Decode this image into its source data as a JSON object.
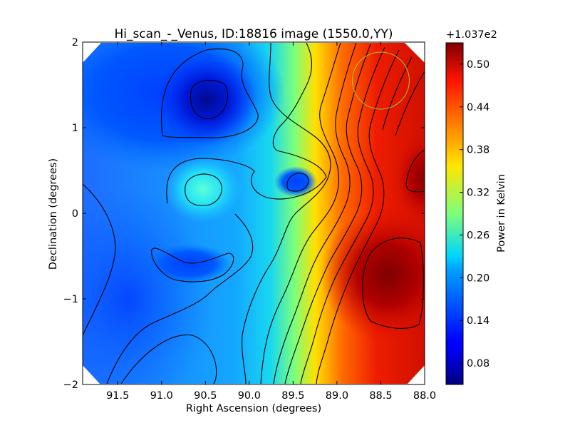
{
  "chart_data": {
    "type": "heatmap",
    "title": "Hi_scan_-_Venus, ID:18816 image (1550.0,YY)",
    "xlabel": "Right Ascension (degrees)",
    "ylabel": "Declination (degrees)",
    "xlim": [
      91.9,
      88.0
    ],
    "ylim": [
      -2,
      2
    ],
    "x_inverted": true,
    "x_ticks": [
      "91.5",
      "91.0",
      "90.5",
      "90.0",
      "89.5",
      "89.0",
      "88.5",
      "88.0"
    ],
    "x_tick_values": [
      91.5,
      91.0,
      90.5,
      90.0,
      89.5,
      89.0,
      88.5,
      88.0
    ],
    "y_ticks": [
      "2",
      "1",
      "0",
      "−1",
      "−2"
    ],
    "y_tick_values": [
      2,
      1,
      0,
      -1,
      -2
    ],
    "colormap": "jet",
    "colorbar": {
      "label": "Power in Kelvin",
      "offset_label": "+1.037e2",
      "offset": 103.7,
      "range": [
        0.05,
        0.53
      ],
      "ticks": [
        "0.50",
        "0.44",
        "0.38",
        "0.32",
        "0.26",
        "0.20",
        "0.14",
        "0.08"
      ],
      "tick_values": [
        0.5,
        0.44,
        0.38,
        0.32,
        0.26,
        0.2,
        0.14,
        0.08
      ]
    },
    "grid": false,
    "contours": true,
    "features": [
      {
        "ra": 90.55,
        "dec": 1.3,
        "value": 0.05,
        "kind": "minimum"
      },
      {
        "ra": 90.6,
        "dec": 0.28,
        "value": 0.26,
        "kind": "local maximum"
      },
      {
        "ra": 89.55,
        "dec": 0.35,
        "value": 0.11,
        "kind": "local minimum"
      },
      {
        "ra": 90.6,
        "dec": -0.6,
        "value": 0.11,
        "kind": "local minimum"
      },
      {
        "ra": 88.5,
        "dec": -0.65,
        "value": 0.53,
        "kind": "maximum"
      },
      {
        "ra": 88.05,
        "dec": 0.45,
        "value": 0.52,
        "kind": "maximum"
      }
    ],
    "marker": {
      "shape": "circle",
      "ra": 88.5,
      "dec": 1.55,
      "color": "#9acd32"
    }
  }
}
